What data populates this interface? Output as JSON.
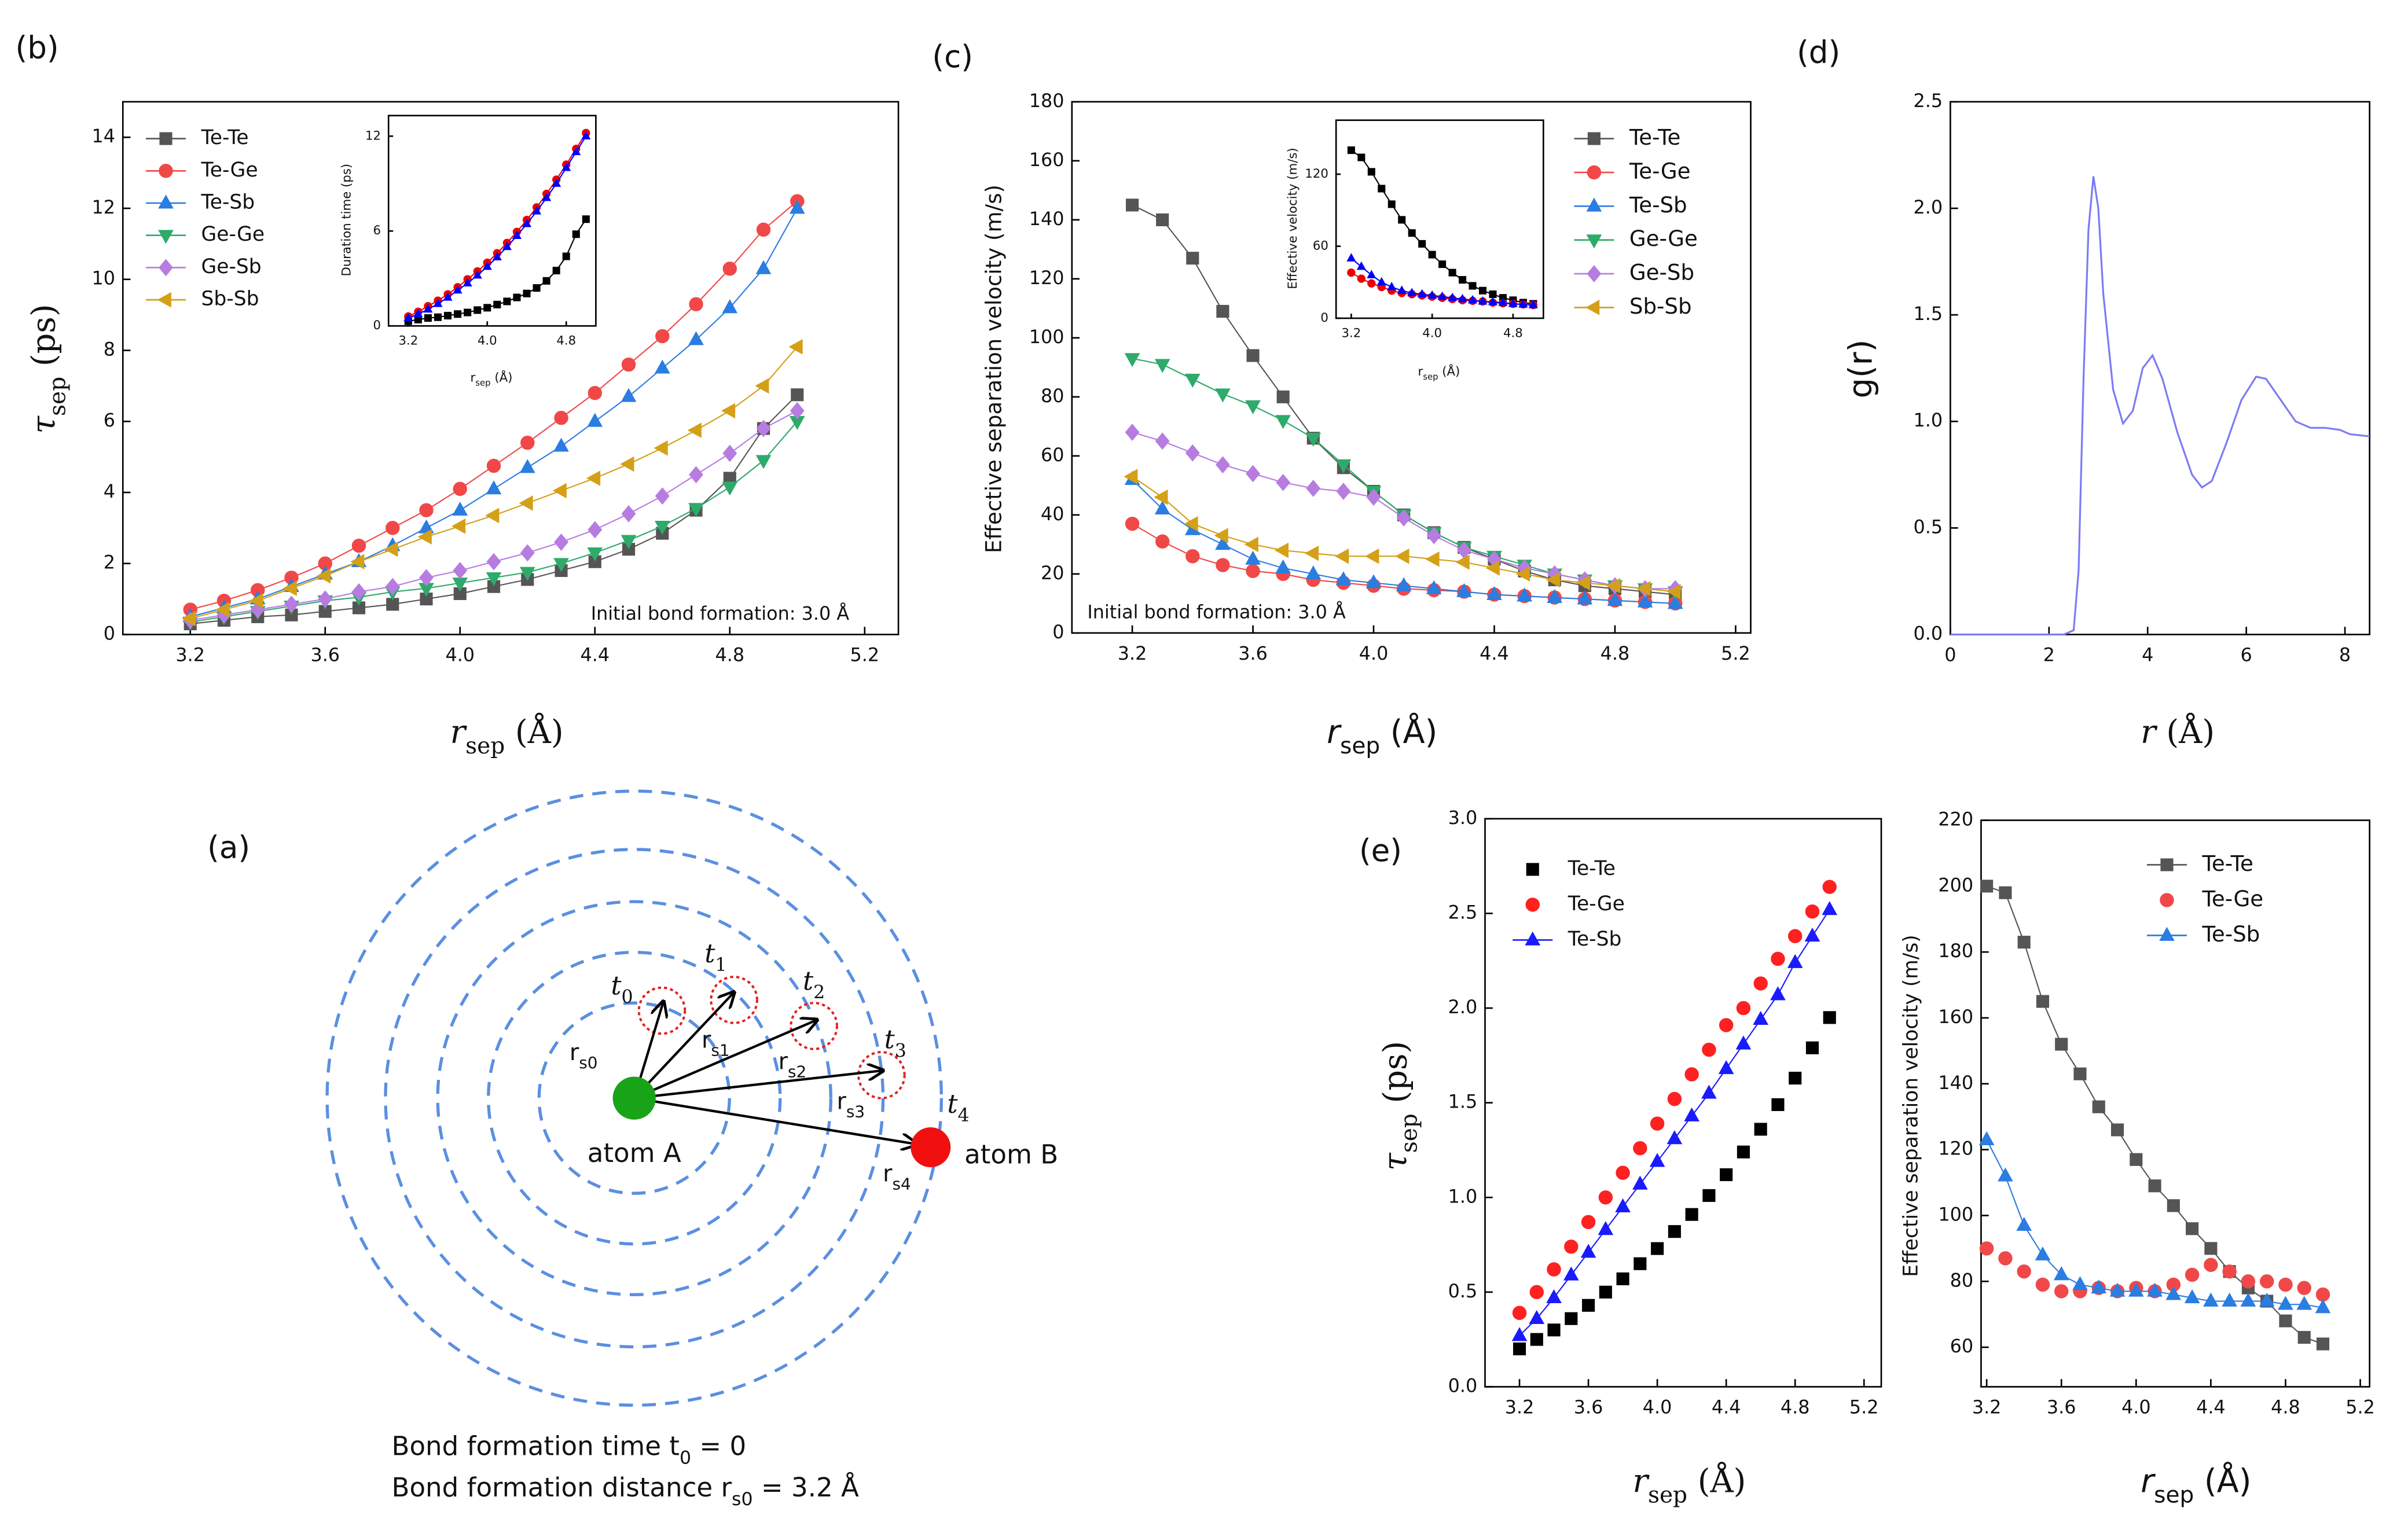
{
  "chart_data": [
    {
      "type": "line",
      "label": "(b)",
      "xlabel": [
        "r",
        "sep",
        " (Å)"
      ],
      "ylabel": [
        "τ",
        "sep",
        " (ps)"
      ],
      "annotation": "Initial bond formation: 3.0 Å",
      "legend": "upper left",
      "x": [
        3.2,
        3.3,
        3.4,
        3.5,
        3.6,
        3.7,
        3.8,
        3.9,
        4.0,
        4.1,
        4.2,
        4.3,
        4.4,
        4.5,
        4.6,
        4.7,
        4.8,
        4.9,
        5.0
      ],
      "xlim": [
        3.0,
        5.3
      ],
      "xticks": [
        3.2,
        3.6,
        {
          "value": 4,
          "label": "4.0"
        },
        4.4,
        4.8,
        5.2
      ],
      "ylim": [
        0,
        15
      ],
      "yticks": [
        0,
        2,
        4,
        6,
        8,
        10,
        12,
        14
      ],
      "series": [
        {
          "name": "Te-Te",
          "color": "#555555",
          "marker": "square",
          "line": true,
          "values": [
            0.3,
            0.4,
            0.5,
            0.55,
            0.65,
            0.75,
            0.85,
            1.0,
            1.15,
            1.35,
            1.55,
            1.8,
            2.05,
            2.4,
            2.85,
            3.5,
            4.4,
            5.8,
            6.75
          ]
        },
        {
          "name": "Te-Ge",
          "color": "#f04848",
          "marker": "circle",
          "line": true,
          "values": [
            0.7,
            0.95,
            1.25,
            1.6,
            2.0,
            2.5,
            3.0,
            3.5,
            4.1,
            4.75,
            5.4,
            6.1,
            6.8,
            7.6,
            8.4,
            9.3,
            10.3,
            11.4,
            12.2
          ]
        },
        {
          "name": "Te-Sb",
          "color": "#2a7de1",
          "marker": "triangle",
          "line": true,
          "values": [
            0.5,
            0.75,
            1.0,
            1.35,
            1.7,
            2.05,
            2.5,
            3.0,
            3.5,
            4.1,
            4.7,
            5.3,
            6.0,
            6.7,
            7.5,
            8.3,
            9.2,
            10.3,
            12.0
          ]
        },
        {
          "name": "Ge-Ge",
          "color": "#2eaa6a",
          "marker": "triangle-down",
          "line": true,
          "values": [
            0.35,
            0.5,
            0.65,
            0.8,
            0.95,
            1.05,
            1.2,
            1.3,
            1.45,
            1.6,
            1.75,
            2.0,
            2.3,
            2.65,
            3.05,
            3.55,
            4.15,
            4.9,
            6.0
          ]
        },
        {
          "name": "Ge-Sb",
          "color": "#b77ce0",
          "marker": "diamond",
          "line": true,
          "values": [
            0.4,
            0.55,
            0.7,
            0.85,
            1.0,
            1.2,
            1.35,
            1.6,
            1.8,
            2.05,
            2.3,
            2.6,
            2.95,
            3.4,
            3.9,
            4.5,
            5.1,
            5.8,
            6.3
          ]
        },
        {
          "name": "Sb-Sb",
          "color": "#d4a017",
          "marker": "triangle-left",
          "line": true,
          "values": [
            0.45,
            0.7,
            0.95,
            1.3,
            1.65,
            2.05,
            2.4,
            2.75,
            3.05,
            3.35,
            3.7,
            4.05,
            4.4,
            4.8,
            5.25,
            5.75,
            6.3,
            7.0,
            8.1
          ]
        }
      ]
    },
    {
      "type": "line",
      "xlabel": [
        "r",
        "sep",
        " (Å)"
      ],
      "ylabel": "Duration time (ps)",
      "x": [
        3.2,
        3.3,
        3.4,
        3.5,
        3.6,
        3.7,
        3.8,
        3.9,
        4.0,
        4.1,
        4.2,
        4.3,
        4.4,
        4.5,
        4.6,
        4.7,
        4.8,
        4.9,
        5.0
      ],
      "xlim": [
        3.0,
        5.1
      ],
      "xticks": [
        3.2,
        {
          "value": 4,
          "label": "4.0"
        },
        4.8
      ],
      "ylim": [
        0,
        13.3
      ],
      "yticks": [
        0,
        6,
        12
      ],
      "series": [
        {
          "color": "#000000",
          "marker": "square",
          "line": true,
          "values": [
            0.3,
            0.4,
            0.5,
            0.55,
            0.65,
            0.75,
            0.85,
            1.0,
            1.15,
            1.35,
            1.55,
            1.8,
            2.05,
            2.4,
            2.85,
            3.5,
            4.4,
            5.8,
            6.75
          ]
        },
        {
          "color": "#ee0000",
          "marker": "circle",
          "line": true,
          "values": [
            0.6,
            0.9,
            1.25,
            1.6,
            2.0,
            2.45,
            2.95,
            3.45,
            4.0,
            4.6,
            5.25,
            5.95,
            6.7,
            7.5,
            8.35,
            9.25,
            10.2,
            11.2,
            12.2
          ]
        },
        {
          "color": "#0000ff",
          "marker": "triangle",
          "line": true,
          "values": [
            0.5,
            0.75,
            1.05,
            1.4,
            1.8,
            2.25,
            2.7,
            3.2,
            3.75,
            4.35,
            5.0,
            5.7,
            6.45,
            7.25,
            8.1,
            9.0,
            10.0,
            11.0,
            12.0
          ]
        }
      ]
    },
    {
      "type": "line",
      "label": "(c)",
      "xlabel": [
        "r",
        "sep",
        " (Å)"
      ],
      "ylabel": "Effective separation velocity (m/s)",
      "annotation": "Initial bond formation: 3.0 Å",
      "legend": "upper right",
      "x": [
        3.2,
        3.3,
        3.4,
        3.5,
        3.6,
        3.7,
        3.8,
        3.9,
        4.0,
        4.1,
        4.2,
        4.3,
        4.4,
        4.5,
        4.6,
        4.7,
        4.8,
        4.9,
        5.0
      ],
      "xlim": [
        3.0,
        5.25
      ],
      "xticks": [
        3.2,
        3.6,
        {
          "value": 4,
          "label": "4.0"
        },
        4.4,
        4.8,
        5.2
      ],
      "ylim": [
        0,
        180
      ],
      "yticks": [
        0,
        20,
        40,
        60,
        80,
        100,
        120,
        140,
        160,
        180
      ],
      "series": [
        {
          "name": "Te-Te",
          "color": "#555555",
          "marker": "square",
          "line": true,
          "values": [
            145,
            140,
            127,
            109,
            94,
            80,
            66,
            56,
            48,
            40,
            34,
            29,
            25,
            21,
            18,
            16,
            15,
            14,
            13
          ]
        },
        {
          "name": "Te-Ge",
          "color": "#f04848",
          "marker": "circle",
          "line": true,
          "values": [
            37,
            31,
            26,
            23,
            21,
            20,
            18,
            17,
            16,
            15,
            14.5,
            14,
            13,
            12.5,
            12,
            11.5,
            11,
            10.5,
            10
          ]
        },
        {
          "name": "Te-Sb",
          "color": "#2a7de1",
          "marker": "triangle",
          "line": true,
          "values": [
            52,
            42,
            35,
            30,
            25,
            22,
            20,
            18,
            17,
            16,
            15,
            14,
            13,
            12.5,
            12,
            11.5,
            11,
            10.5,
            10
          ]
        },
        {
          "name": "Ge-Ge",
          "color": "#2eaa6a",
          "marker": "triangle-down",
          "line": true,
          "values": [
            93,
            91,
            86,
            81,
            77,
            72,
            66,
            57,
            48,
            40,
            34,
            29,
            26,
            23,
            20,
            18,
            16,
            15,
            14
          ]
        },
        {
          "name": "Ge-Sb",
          "color": "#b77ce0",
          "marker": "diamond",
          "line": true,
          "values": [
            68,
            65,
            61,
            57,
            54,
            51,
            49,
            48,
            46,
            39,
            33,
            28,
            25,
            22,
            20,
            18,
            16,
            15,
            15
          ]
        },
        {
          "name": "Sb-Sb",
          "color": "#d4a017",
          "marker": "triangle-left",
          "line": true,
          "values": [
            53,
            46,
            37,
            33,
            30,
            28,
            27,
            26,
            26,
            26,
            25,
            24,
            22,
            20,
            18,
            17,
            16,
            15,
            14
          ]
        }
      ]
    },
    {
      "type": "line",
      "xlabel": [
        "r",
        "sep",
        " (Å)"
      ],
      "ylabel": "Effective velocity (m/s)",
      "x": [
        3.2,
        3.3,
        3.4,
        3.5,
        3.6,
        3.7,
        3.8,
        3.9,
        4.0,
        4.1,
        4.2,
        4.3,
        4.4,
        4.5,
        4.6,
        4.7,
        4.8,
        4.9,
        5.0
      ],
      "xlim": [
        3.05,
        5.1
      ],
      "xticks": [
        3.2,
        {
          "value": 4,
          "label": "4.0"
        },
        4.8
      ],
      "ylim": [
        0,
        165
      ],
      "yticks": [
        0,
        60,
        120
      ],
      "series": [
        {
          "color": "#000000",
          "marker": "square",
          "line": true,
          "values": [
            140,
            134,
            122,
            108,
            95,
            82,
            71,
            62,
            53,
            45,
            38,
            32,
            27,
            23,
            20,
            17,
            15,
            13,
            12
          ]
        },
        {
          "color": "#ee0000",
          "marker": "circle",
          "line": true,
          "values": [
            38,
            33,
            29,
            26,
            23,
            21,
            20,
            19,
            18,
            17,
            16,
            15,
            14.5,
            14,
            13,
            12.5,
            12,
            11.5,
            11
          ]
        },
        {
          "color": "#0000ff",
          "marker": "triangle",
          "line": true,
          "values": [
            50,
            43,
            36,
            30,
            26,
            23,
            21,
            20,
            19,
            18,
            17,
            16,
            15,
            14,
            13.5,
            13,
            12,
            11.5,
            11
          ]
        }
      ]
    },
    {
      "type": "line",
      "label": "(d)",
      "xlabel": [
        "r",
        " (Å)"
      ],
      "ylabel": "g(r)",
      "x": [
        0,
        2.3,
        2.5,
        2.6,
        2.7,
        2.8,
        2.9,
        3.0,
        3.1,
        3.3,
        3.5,
        3.7,
        3.9,
        4.1,
        4.3,
        4.6,
        4.9,
        5.1,
        5.3,
        5.6,
        5.9,
        6.2,
        6.4,
        6.7,
        7.0,
        7.3,
        7.6,
        7.9,
        8.1,
        8.5
      ],
      "xlim": [
        0,
        8.5
      ],
      "xticks": [
        0,
        2,
        4,
        6,
        8
      ],
      "ylim": [
        0,
        2.5
      ],
      "yticks": [
        {
          "value": 0,
          "label": "0.0"
        },
        0.5,
        {
          "value": 1,
          "label": "1.0"
        },
        1.5,
        {
          "value": 2,
          "label": "2.0"
        },
        2.5
      ],
      "series": [
        {
          "color": "#7b7bf5",
          "line": true,
          "values": [
            0,
            0,
            0.02,
            0.3,
            1.2,
            1.9,
            2.15,
            2.0,
            1.6,
            1.15,
            0.99,
            1.05,
            1.25,
            1.31,
            1.2,
            0.95,
            0.75,
            0.69,
            0.72,
            0.9,
            1.1,
            1.21,
            1.2,
            1.1,
            1.0,
            0.97,
            0.97,
            0.96,
            0.94,
            0.93
          ]
        }
      ]
    },
    {
      "type": "line",
      "label": "(e)",
      "xlabel": [
        "r",
        "sep",
        " (Å)"
      ],
      "ylabel": [
        "τ",
        "sep",
        " (ps)"
      ],
      "legend": "upper left",
      "x": [
        3.2,
        3.3,
        3.4,
        3.5,
        3.6,
        3.7,
        3.8,
        3.9,
        4.0,
        4.1,
        4.2,
        4.3,
        4.4,
        4.5,
        4.6,
        4.7,
        4.8,
        4.9,
        5.0
      ],
      "xlim": [
        3.0,
        5.3
      ],
      "xticks": [
        3.2,
        3.6,
        {
          "value": 4,
          "label": "4.0"
        },
        4.4,
        4.8,
        5.2
      ],
      "ylim": [
        0,
        3
      ],
      "yticks": [
        {
          "value": 0,
          "label": "0.0"
        },
        0.5,
        {
          "value": 1,
          "label": "1.0"
        },
        1.5,
        {
          "value": 2,
          "label": "2.0"
        },
        2.5,
        {
          "value": 3,
          "label": "3.0"
        }
      ],
      "series": [
        {
          "name": "Te-Te",
          "color": "#000000",
          "marker": "square",
          "line": false,
          "values": [
            0.2,
            0.25,
            0.3,
            0.36,
            0.43,
            0.5,
            0.57,
            0.65,
            0.73,
            0.82,
            0.91,
            1.01,
            1.12,
            1.24,
            1.36,
            1.49,
            1.63,
            1.79,
            1.95
          ]
        },
        {
          "name": "Te-Ge",
          "color": "#ff2020",
          "marker": "circle",
          "line": false,
          "values": [
            0.39,
            0.5,
            0.62,
            0.74,
            0.87,
            1.0,
            1.13,
            1.26,
            1.39,
            1.52,
            1.65,
            1.78,
            1.91,
            2.0,
            2.13,
            2.26,
            2.38,
            2.51,
            2.64
          ]
        },
        {
          "name": "Te-Sb",
          "color": "#1a1aff",
          "marker": "triangle",
          "line": true,
          "values": [
            0.27,
            0.36,
            0.47,
            0.59,
            0.71,
            0.83,
            0.95,
            1.07,
            1.19,
            1.31,
            1.43,
            1.55,
            1.68,
            1.81,
            1.94,
            2.07,
            2.24,
            2.38,
            2.52
          ]
        }
      ]
    },
    {
      "type": "line",
      "xlabel": [
        "r",
        "sep",
        " (Å)"
      ],
      "ylabel": "Effective separation velocity (m/s)",
      "legend": "upper right",
      "x": [
        3.2,
        3.3,
        3.4,
        3.5,
        3.6,
        3.7,
        3.8,
        3.9,
        4.0,
        4.1,
        4.2,
        4.3,
        4.4,
        4.5,
        4.6,
        4.7,
        4.8,
        4.9,
        5.0
      ],
      "xlim": [
        3.17,
        5.25
      ],
      "xticks": [
        3.2,
        3.6,
        {
          "value": 4,
          "label": "4.0"
        },
        4.4,
        4.8,
        5.2
      ],
      "ylim": [
        48,
        220
      ],
      "yticks": [
        60,
        80,
        100,
        120,
        140,
        160,
        180,
        200,
        220
      ],
      "series": [
        {
          "name": "Te-Te",
          "color": "#555555",
          "marker": "square",
          "line": true,
          "values": [
            200,
            198,
            183,
            165,
            152,
            143,
            133,
            126,
            117,
            109,
            103,
            96,
            90,
            83,
            78,
            74,
            68,
            63,
            61
          ]
        },
        {
          "name": "Te-Ge",
          "color": "#f04848",
          "marker": "circle",
          "line": false,
          "values": [
            90,
            87,
            83,
            79,
            77,
            77,
            78,
            77,
            78,
            77,
            79,
            82,
            85,
            83,
            80,
            80,
            79,
            78,
            76
          ]
        },
        {
          "name": "Te-Sb",
          "color": "#2a7de1",
          "marker": "triangle",
          "line": true,
          "values": [
            123,
            112,
            97,
            88,
            82,
            79,
            78,
            77,
            77,
            77,
            76,
            75,
            74,
            74,
            74,
            74,
            73,
            73,
            72
          ]
        }
      ]
    }
  ],
  "diagram": {
    "label": "(a)",
    "times": [
      [
        "t",
        "0"
      ],
      [
        "t",
        "1"
      ],
      [
        "t",
        "2"
      ],
      [
        "t",
        "3"
      ],
      [
        "t",
        "4"
      ]
    ],
    "distances": [
      [
        "r",
        "s0"
      ],
      [
        "r",
        "s1"
      ],
      [
        "r",
        "s2"
      ],
      [
        "r",
        "s3"
      ],
      [
        "r",
        "s4"
      ]
    ],
    "atoms": [
      "atom A",
      "atom B"
    ],
    "notes": [
      [
        "Bond formation time t",
        "0",
        " = 0"
      ],
      [
        "Bond formation distance r",
        "s0",
        " = 3.2 Å"
      ]
    ]
  }
}
